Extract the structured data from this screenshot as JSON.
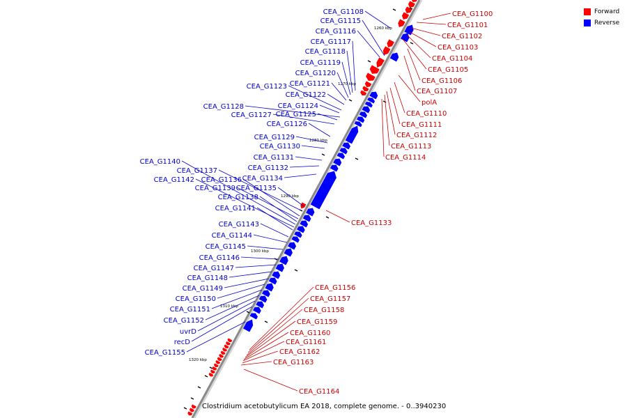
{
  "legend": {
    "forward_label": "Forward",
    "reverse_label": "Reverse",
    "forward_color": "#ff0000",
    "reverse_color": "#0000ff"
  },
  "sequence_title": "Clostridium acetobutylicum EA 2018, complete genome. - 0..3940230",
  "scale_ticks": [
    "1260 kbp",
    "1270 kbp",
    "1280 kbp",
    "1290 kbp",
    "1300 kbp",
    "1310 kbp",
    "1320 kbp"
  ],
  "forward_genes": [
    "CEA_G1100",
    "CEA_G1101",
    "CEA_G1102",
    "CEA_G1103",
    "CEA_G1104",
    "CEA_G1105",
    "CEA_G1106",
    "CEA_G1107",
    "polA",
    "CEA_G1110",
    "CEA_G1111",
    "CEA_G1112",
    "CEA_G1113",
    "CEA_G1114",
    "CEA_G1133",
    "CEA_G1156",
    "CEA_G1157",
    "CEA_G1158",
    "CEA_G1159",
    "CEA_G1160",
    "CEA_G1161",
    "CEA_G1162",
    "CEA_G1163",
    "CEA_G1164"
  ],
  "reverse_genes": [
    "CEA_G1108",
    "CEA_G1115",
    "CEA_G1116",
    "CEA_G1117",
    "CEA_G1118",
    "CEA_G1119",
    "CEA_G1120",
    "CEA_G1121",
    "CEA_G1122",
    "CEA_G1123",
    "CEA_G1124",
    "CEA_G1125",
    "CEA_G1126",
    "CEA_G1127",
    "CEA_G1128",
    "CEA_G1129",
    "CEA_G1130",
    "CEA_G1131",
    "CEA_G1132",
    "CEA_G1134",
    "CEA_G1135",
    "CEA_G1136",
    "CEA_G1137",
    "CEA_G1138",
    "CEA_G1139",
    "CEA_G1140",
    "CEA_G1141",
    "CEA_G1142",
    "CEA_G1143",
    "CEA_G1144",
    "CEA_G1145",
    "CEA_G1146",
    "CEA_G1147",
    "CEA_G1148",
    "CEA_G1149",
    "CEA_G1150",
    "CEA_G1151",
    "CEA_G1152",
    "uvrD",
    "recD",
    "CEA_G1155"
  ]
}
